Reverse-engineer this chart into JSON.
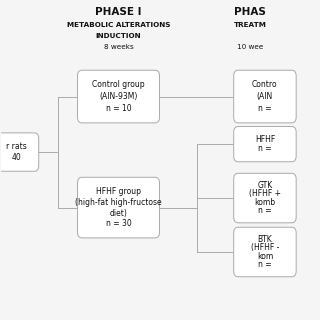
{
  "background_color": "#f5f5f5",
  "fig_width": 3.2,
  "fig_height": 3.2,
  "dpi": 100,
  "phase1_title": "PHASE I",
  "phase1_sub1": "METABOLIC ALTERATIONS",
  "phase1_sub2": "INDUCTION",
  "phase1_weeks": "8 weeks",
  "phase2_title": "PHAS",
  "phase2_sub": "TREATM",
  "phase2_weeks": "10 wee",
  "left_box_line1": "r rats",
  "left_box_line2": "40",
  "ctrl_line1": "Control group",
  "ctrl_line2": "(AIN-93M)",
  "ctrl_line3": "n = 10",
  "hfhf_line1": "HFHF group",
  "hfhf_line2": "(high-fat high-fructose",
  "hfhf_line3": "diet)",
  "hfhf_line4": "n = 30",
  "r_ctrl_line1": "Contro",
  "r_ctrl_line2": "(AIN",
  "r_ctrl_line3": "n =",
  "r_hfhf_line1": "HFHF",
  "r_hfhf_line2": "n =",
  "r_gtk_line1": "GTK",
  "r_gtk_line2": "(HFHF +",
  "r_gtk_line3": "komb",
  "r_gtk_line4": "n =",
  "r_btk_line1": "BTK",
  "r_btk_line2": "(HFHF -",
  "r_btk_line3": "kom",
  "r_btk_line4": "n =",
  "box_edge_color": "#aaaaaa",
  "line_color": "#aaaaaa",
  "text_color": "#111111"
}
